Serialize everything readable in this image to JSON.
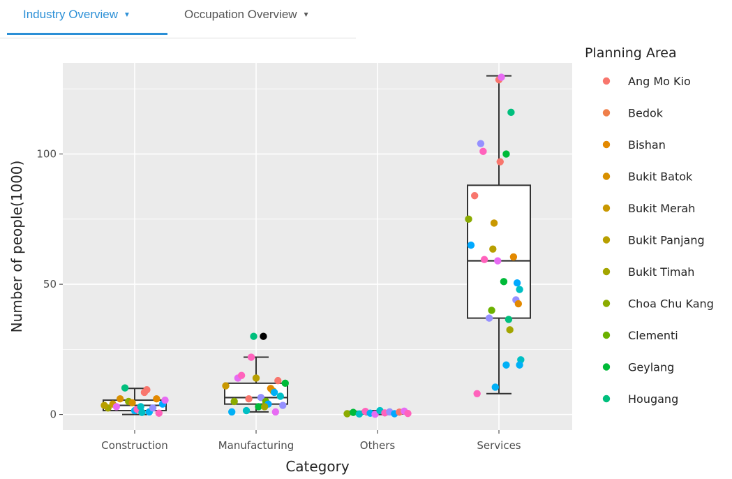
{
  "tabs": [
    {
      "label": "Industry Overview",
      "active": true
    },
    {
      "label": "Occupation Overview",
      "active": false
    }
  ],
  "colors": {
    "panel": "#ebebeb",
    "grid": "#ffffff",
    "box_stroke": "#333333",
    "tab_active": "#2b8fd6"
  },
  "chart_data": {
    "type": "boxplot-with-jittered-points",
    "xlabel": "Category",
    "ylabel": "Number of people(1000)",
    "categories": [
      "Construction",
      "Manufacturing",
      "Others",
      "Services"
    ],
    "ylim": [
      -6,
      135
    ],
    "yticks": [
      0,
      50,
      100
    ],
    "grid": true,
    "legend": {
      "title": "Planning Area",
      "placement": "right",
      "entries": [
        {
          "name": "Ang Mo Kio",
          "color": "#f8766d"
        },
        {
          "name": "Bedok",
          "color": "#ef7f4a"
        },
        {
          "name": "Bishan",
          "color": "#e38900"
        },
        {
          "name": "Bukit Batok",
          "color": "#d89000"
        },
        {
          "name": "Bukit Merah",
          "color": "#c99800"
        },
        {
          "name": "Bukit Panjang",
          "color": "#b89f00"
        },
        {
          "name": "Bukit Timah",
          "color": "#a3a500"
        },
        {
          "name": "Choa Chu Kang",
          "color": "#8bab00"
        },
        {
          "name": "Clementi",
          "color": "#6bb100"
        },
        {
          "name": "Geylang",
          "color": "#00ba38"
        },
        {
          "name": "Hougang",
          "color": "#00bf7d"
        }
      ]
    },
    "boxes": [
      {
        "category": "Construction",
        "min": 0,
        "q1": 1.5,
        "median": 3.5,
        "q3": 5.5,
        "max": 10
      },
      {
        "category": "Manufacturing",
        "min": 1,
        "q1": 4,
        "median": 6.5,
        "q3": 12,
        "max": 22
      },
      {
        "category": "Others",
        "min": 0,
        "q1": 0.2,
        "median": 0.6,
        "q3": 1.2,
        "max": 1.5
      },
      {
        "category": "Services",
        "min": 8,
        "q1": 37,
        "median": 59,
        "q3": 88,
        "max": 130
      }
    ],
    "points": [
      {
        "category": "Construction",
        "jitter": -0.22,
        "y": 2.5,
        "color": "#a3a500"
      },
      {
        "category": "Construction",
        "jitter": -0.18,
        "y": 4,
        "color": "#c99800"
      },
      {
        "category": "Construction",
        "jitter": -0.15,
        "y": 3,
        "color": "#e76bf3"
      },
      {
        "category": "Construction",
        "jitter": -0.12,
        "y": 6,
        "color": "#d89000"
      },
      {
        "category": "Construction",
        "jitter": -0.08,
        "y": 10.2,
        "color": "#00bf7d"
      },
      {
        "category": "Construction",
        "jitter": -0.05,
        "y": 5,
        "color": "#8bab00"
      },
      {
        "category": "Construction",
        "jitter": -0.02,
        "y": 4.5,
        "color": "#d89000"
      },
      {
        "category": "Construction",
        "jitter": 0.0,
        "y": 1.5,
        "color": "#00b0f6"
      },
      {
        "category": "Construction",
        "jitter": 0.02,
        "y": 2,
        "color": "#ff62bc"
      },
      {
        "category": "Construction",
        "jitter": 0.05,
        "y": 3,
        "color": "#00bfc4"
      },
      {
        "category": "Construction",
        "jitter": 0.08,
        "y": 8.5,
        "color": "#f8766d"
      },
      {
        "category": "Construction",
        "jitter": 0.1,
        "y": 9.5,
        "color": "#f8766d"
      },
      {
        "category": "Construction",
        "jitter": 0.12,
        "y": 1,
        "color": "#00b0f6"
      },
      {
        "category": "Construction",
        "jitter": 0.15,
        "y": 2.5,
        "color": "#9590ff"
      },
      {
        "category": "Construction",
        "jitter": 0.18,
        "y": 6,
        "color": "#e38900"
      },
      {
        "category": "Construction",
        "jitter": 0.2,
        "y": 0.5,
        "color": "#ff62bc"
      },
      {
        "category": "Construction",
        "jitter": 0.23,
        "y": 4,
        "color": "#00a9ff"
      },
      {
        "category": "Construction",
        "jitter": 0.25,
        "y": 5.5,
        "color": "#e76bf3"
      },
      {
        "category": "Construction",
        "jitter": -0.25,
        "y": 3.5,
        "color": "#b89f00"
      },
      {
        "category": "Construction",
        "jitter": 0.06,
        "y": 0.8,
        "color": "#00bfc4"
      },
      {
        "category": "Manufacturing",
        "jitter": -0.25,
        "y": 11,
        "color": "#c99800"
      },
      {
        "category": "Manufacturing",
        "jitter": -0.2,
        "y": 1,
        "color": "#00b0f6"
      },
      {
        "category": "Manufacturing",
        "jitter": -0.18,
        "y": 5,
        "color": "#8bab00"
      },
      {
        "category": "Manufacturing",
        "jitter": -0.15,
        "y": 14,
        "color": "#e76bf3"
      },
      {
        "category": "Manufacturing",
        "jitter": -0.12,
        "y": 15,
        "color": "#ff62bc"
      },
      {
        "category": "Manufacturing",
        "jitter": -0.08,
        "y": 1.5,
        "color": "#00bfc4"
      },
      {
        "category": "Manufacturing",
        "jitter": -0.06,
        "y": 6,
        "color": "#f8766d"
      },
      {
        "category": "Manufacturing",
        "jitter": -0.04,
        "y": 22,
        "color": "#ff62bc"
      },
      {
        "category": "Manufacturing",
        "jitter": -0.02,
        "y": 30,
        "color": "#00bf7d"
      },
      {
        "category": "Manufacturing",
        "jitter": 0.0,
        "y": 14,
        "color": "#b89f00"
      },
      {
        "category": "Manufacturing",
        "jitter": 0.02,
        "y": 3,
        "color": "#00ba38"
      },
      {
        "category": "Manufacturing",
        "jitter": 0.04,
        "y": 6.5,
        "color": "#9590ff"
      },
      {
        "category": "Manufacturing",
        "jitter": 0.06,
        "y": 30,
        "color": "#000000"
      },
      {
        "category": "Manufacturing",
        "jitter": 0.08,
        "y": 5,
        "color": "#6bb100"
      },
      {
        "category": "Manufacturing",
        "jitter": 0.1,
        "y": 4,
        "color": "#00a9ff"
      },
      {
        "category": "Manufacturing",
        "jitter": 0.12,
        "y": 10,
        "color": "#e38900"
      },
      {
        "category": "Manufacturing",
        "jitter": 0.14,
        "y": 9,
        "color": "#d89000"
      },
      {
        "category": "Manufacturing",
        "jitter": 0.16,
        "y": 1,
        "color": "#e76bf3"
      },
      {
        "category": "Manufacturing",
        "jitter": 0.18,
        "y": 13,
        "color": "#f8766d"
      },
      {
        "category": "Manufacturing",
        "jitter": 0.2,
        "y": 7,
        "color": "#00bfc4"
      },
      {
        "category": "Manufacturing",
        "jitter": 0.22,
        "y": 3.5,
        "color": "#9590ff"
      },
      {
        "category": "Manufacturing",
        "jitter": 0.24,
        "y": 12,
        "color": "#00ba38"
      },
      {
        "category": "Manufacturing",
        "jitter": 0.15,
        "y": 8.5,
        "color": "#00b0f6"
      },
      {
        "category": "Manufacturing",
        "jitter": 0.07,
        "y": 3,
        "color": "#a3a500"
      },
      {
        "category": "Others",
        "jitter": -0.25,
        "y": 0.3,
        "color": "#8bab00"
      },
      {
        "category": "Others",
        "jitter": -0.2,
        "y": 0.8,
        "color": "#00ba38"
      },
      {
        "category": "Others",
        "jitter": -0.15,
        "y": 0.2,
        "color": "#00bfc4"
      },
      {
        "category": "Others",
        "jitter": -0.1,
        "y": 1.2,
        "color": "#ff62bc"
      },
      {
        "category": "Others",
        "jitter": -0.06,
        "y": 0.5,
        "color": "#00b0f6"
      },
      {
        "category": "Others",
        "jitter": -0.02,
        "y": 0.1,
        "color": "#e76bf3"
      },
      {
        "category": "Others",
        "jitter": 0.02,
        "y": 1.5,
        "color": "#00bfc4"
      },
      {
        "category": "Others",
        "jitter": 0.06,
        "y": 0.6,
        "color": "#ff62bc"
      },
      {
        "category": "Others",
        "jitter": 0.1,
        "y": 1,
        "color": "#9590ff"
      },
      {
        "category": "Others",
        "jitter": 0.14,
        "y": 0.3,
        "color": "#00a9ff"
      },
      {
        "category": "Others",
        "jitter": 0.18,
        "y": 0.9,
        "color": "#f8766d"
      },
      {
        "category": "Others",
        "jitter": 0.22,
        "y": 1.3,
        "color": "#e76bf3"
      },
      {
        "category": "Others",
        "jitter": 0.25,
        "y": 0.4,
        "color": "#ff62bc"
      },
      {
        "category": "Services",
        "jitter": -0.25,
        "y": 75,
        "color": "#8bab00"
      },
      {
        "category": "Services",
        "jitter": -0.23,
        "y": 65,
        "color": "#00a9ff"
      },
      {
        "category": "Services",
        "jitter": -0.2,
        "y": 84,
        "color": "#f8766d"
      },
      {
        "category": "Services",
        "jitter": -0.18,
        "y": 8,
        "color": "#ff62bc"
      },
      {
        "category": "Services",
        "jitter": -0.15,
        "y": 104,
        "color": "#9590ff"
      },
      {
        "category": "Services",
        "jitter": -0.13,
        "y": 101,
        "color": "#ff62bc"
      },
      {
        "category": "Services",
        "jitter": -0.12,
        "y": 59.5,
        "color": "#ff62bc"
      },
      {
        "category": "Services",
        "jitter": -0.08,
        "y": 37,
        "color": "#9590ff"
      },
      {
        "category": "Services",
        "jitter": -0.06,
        "y": 40,
        "color": "#6bb100"
      },
      {
        "category": "Services",
        "jitter": -0.05,
        "y": 63.5,
        "color": "#b89f00"
      },
      {
        "category": "Services",
        "jitter": -0.04,
        "y": 73.5,
        "color": "#c99800"
      },
      {
        "category": "Services",
        "jitter": -0.03,
        "y": 10.5,
        "color": "#00b0f6"
      },
      {
        "category": "Services",
        "jitter": -0.01,
        "y": 59,
        "color": "#e76bf3"
      },
      {
        "category": "Services",
        "jitter": 0.0,
        "y": 128.5,
        "color": "#f8766d"
      },
      {
        "category": "Services",
        "jitter": 0.01,
        "y": 97,
        "color": "#f8766d"
      },
      {
        "category": "Services",
        "jitter": 0.02,
        "y": 129.5,
        "color": "#e76bf3"
      },
      {
        "category": "Services",
        "jitter": 0.04,
        "y": 51,
        "color": "#00ba38"
      },
      {
        "category": "Services",
        "jitter": 0.06,
        "y": 100,
        "color": "#00ba38"
      },
      {
        "category": "Services",
        "jitter": 0.06,
        "y": 19,
        "color": "#00b0f6"
      },
      {
        "category": "Services",
        "jitter": 0.08,
        "y": 36.5,
        "color": "#00bf7d"
      },
      {
        "category": "Services",
        "jitter": 0.09,
        "y": 32.5,
        "color": "#a3a500"
      },
      {
        "category": "Services",
        "jitter": 0.1,
        "y": 116,
        "color": "#00bf7d"
      },
      {
        "category": "Services",
        "jitter": 0.12,
        "y": 60.5,
        "color": "#e38900"
      },
      {
        "category": "Services",
        "jitter": 0.14,
        "y": 44,
        "color": "#9590ff"
      },
      {
        "category": "Services",
        "jitter": 0.15,
        "y": 50.5,
        "color": "#00a9ff"
      },
      {
        "category": "Services",
        "jitter": 0.16,
        "y": 42.5,
        "color": "#e38900"
      },
      {
        "category": "Services",
        "jitter": 0.17,
        "y": 48,
        "color": "#00bfc4"
      },
      {
        "category": "Services",
        "jitter": 0.18,
        "y": 21,
        "color": "#00bfc4"
      },
      {
        "category": "Services",
        "jitter": 0.17,
        "y": 19,
        "color": "#00b0f6"
      }
    ]
  }
}
